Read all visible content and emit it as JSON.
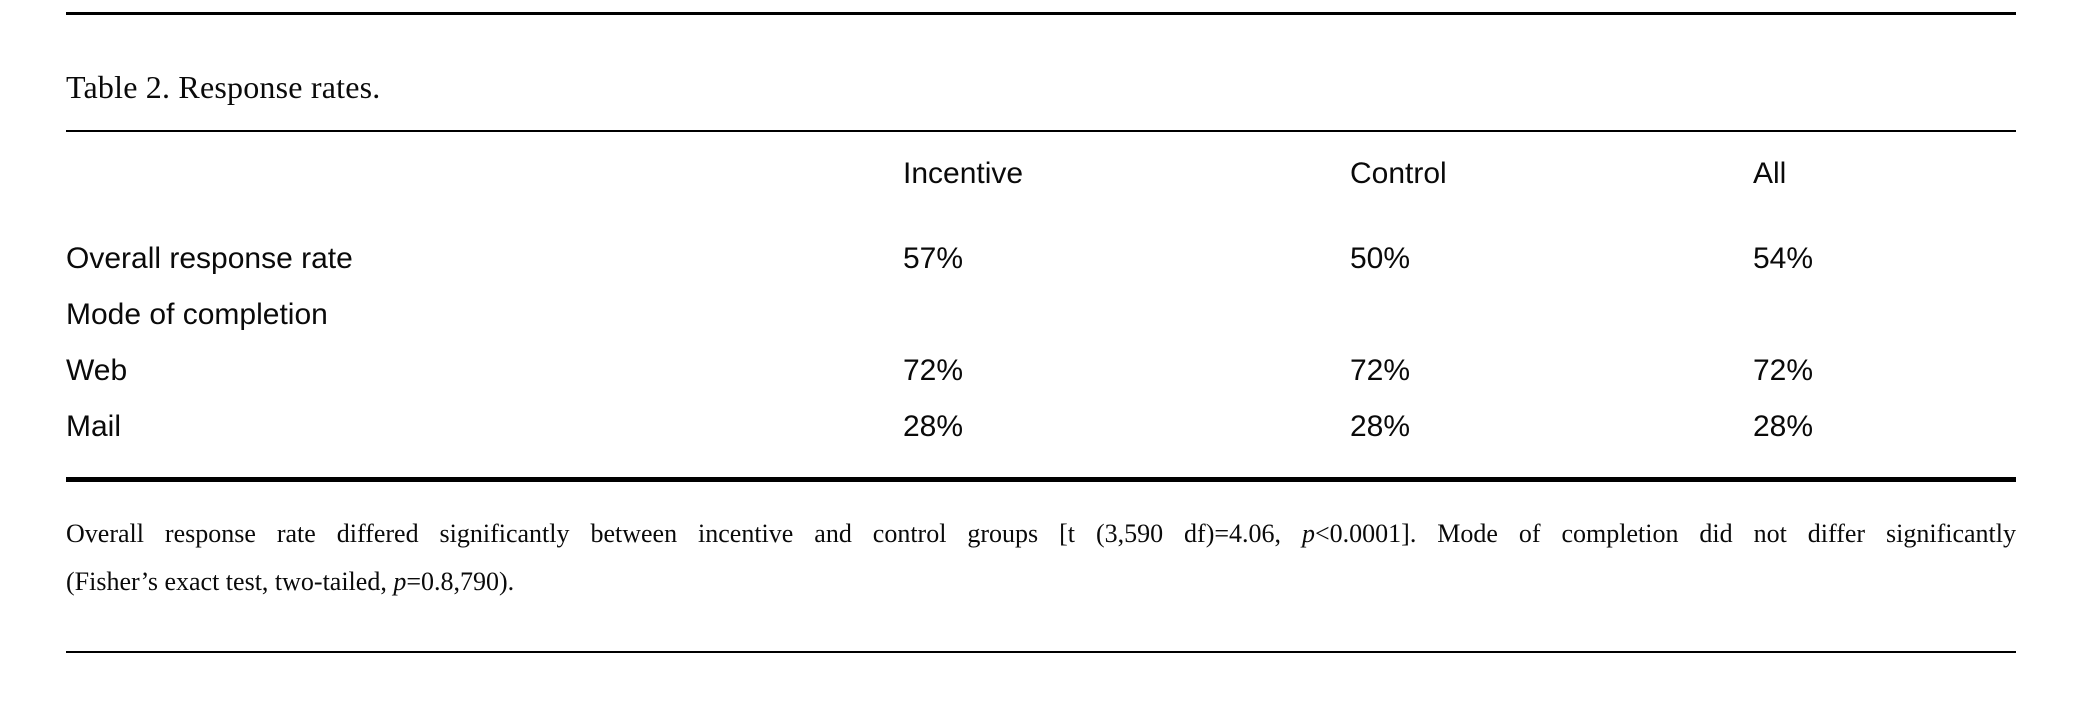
{
  "table": {
    "title": "Table 2. Response rates.",
    "column_headers": [
      "Incentive",
      "Control",
      "All"
    ],
    "rows": [
      {
        "label": "Overall response rate",
        "values": [
          "57%",
          "50%",
          "54%"
        ]
      },
      {
        "label": "Mode of completion",
        "values": [
          "",
          "",
          ""
        ]
      },
      {
        "label": "Web",
        "values": [
          "72%",
          "72%",
          "72%"
        ]
      },
      {
        "label": "Mail",
        "values": [
          "28%",
          "28%",
          "28%"
        ]
      }
    ]
  },
  "footnote": {
    "line1": {
      "part1": "Overall response rate differed significantly between incentive and control groups [t (3,590 df)=4.06, ",
      "p1": "p",
      "part2": "<0.0001]. Mode of completion did not differ significantly"
    },
    "line2": {
      "part1": "(Fisher’s exact test, two-tailed, ",
      "p2": "p",
      "part2": "=0.8,790)."
    }
  },
  "colors": {
    "rule": "#000000",
    "text": "#0a0a0a",
    "background": "#ffffff"
  }
}
